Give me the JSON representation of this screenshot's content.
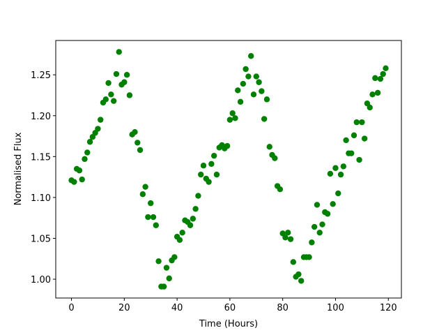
{
  "chart_data": {
    "type": "scatter",
    "xlabel": "Time (Hours)",
    "ylabel": "Normalised Flux",
    "color": "#008000",
    "x": [
      0,
      1,
      2,
      3,
      4,
      5,
      6,
      7,
      8,
      9,
      10,
      11,
      12,
      13,
      14,
      15,
      16,
      17,
      18,
      19,
      20,
      21,
      22,
      23,
      24,
      25,
      26,
      27,
      28,
      29,
      30,
      31,
      32,
      33,
      34,
      35,
      36,
      37,
      38,
      39,
      40,
      41,
      42,
      43,
      44,
      45,
      46,
      47,
      48,
      49,
      50,
      51,
      52,
      53,
      54,
      55,
      56,
      57,
      58,
      59,
      60,
      61,
      62,
      63,
      64,
      65,
      66,
      67,
      68,
      69,
      70,
      71,
      72,
      73,
      74,
      75,
      76,
      77,
      78,
      79,
      80,
      81,
      82,
      83,
      84,
      85,
      86,
      87,
      88,
      89,
      90,
      91,
      92,
      93,
      94,
      95,
      96,
      97,
      98,
      99,
      100,
      101,
      102,
      103,
      104,
      105,
      106,
      107,
      108,
      109,
      110,
      111,
      112,
      113,
      114,
      115,
      116,
      117,
      118,
      119
    ],
    "values": [
      1.121,
      1.119,
      1.135,
      1.133,
      1.122,
      1.147,
      1.155,
      1.168,
      1.174,
      1.179,
      1.184,
      1.195,
      1.216,
      1.22,
      1.24,
      1.226,
      1.218,
      1.251,
      1.278,
      1.238,
      1.241,
      1.25,
      1.225,
      1.177,
      1.18,
      1.167,
      1.158,
      1.104,
      1.113,
      1.076,
      1.093,
      1.076,
      1.066,
      1.022,
      0.991,
      0.991,
      1.014,
      1.001,
      1.023,
      1.027,
      1.052,
      1.048,
      1.057,
      1.072,
      1.07,
      1.066,
      1.074,
      1.086,
      1.102,
      1.128,
      1.139,
      1.123,
      1.119,
      1.141,
      1.151,
      1.128,
      1.161,
      1.164,
      1.16,
      1.163,
      1.195,
      1.203,
      1.197,
      1.231,
      1.217,
      1.239,
      1.257,
      1.248,
      1.273,
      1.226,
      1.248,
      1.241,
      1.23,
      1.196,
      1.22,
      1.162,
      1.152,
      1.148,
      1.114,
      1.11,
      1.056,
      1.051,
      1.057,
      1.049,
      1.021,
      1.003,
      1.006,
      0.998,
      1.027,
      1.027,
      1.027,
      1.045,
      1.064,
      1.091,
      1.057,
      1.067,
      1.082,
      1.08,
      1.129,
      1.092,
      1.136,
      1.105,
      1.128,
      1.138,
      1.17,
      1.154,
      1.154,
      1.176,
      1.192,
      1.146,
      1.192,
      1.172,
      1.215,
      1.21,
      1.226,
      1.246,
      1.228,
      1.245,
      1.251,
      1.258
    ],
    "xlim": [
      -5.95,
      124.95
    ],
    "ylim": [
      0.977,
      1.292
    ],
    "xticks": [
      0,
      20,
      40,
      60,
      80,
      100,
      120
    ],
    "yticks": [
      {
        "value": 1.0,
        "label": "1.00"
      },
      {
        "value": 1.05,
        "label": "1.05"
      },
      {
        "value": 1.1,
        "label": "1.10"
      },
      {
        "value": 1.15,
        "label": "1.15"
      },
      {
        "value": 1.2,
        "label": "1.20"
      },
      {
        "value": 1.25,
        "label": "1.25"
      }
    ]
  }
}
